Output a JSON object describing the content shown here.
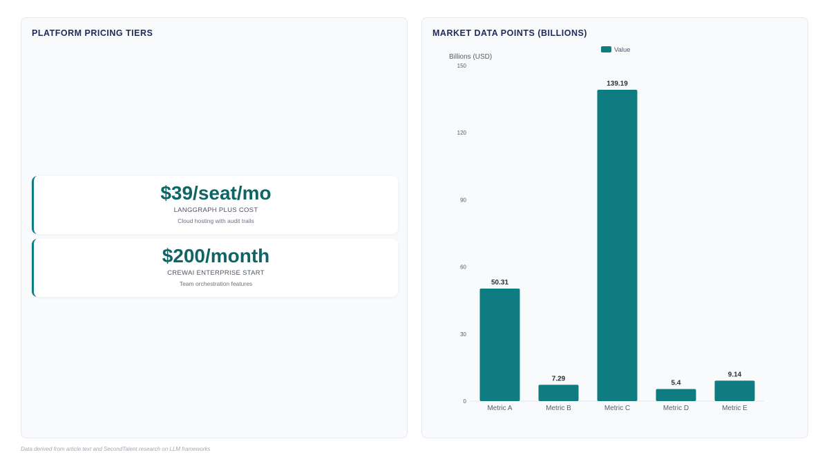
{
  "left_panel": {
    "title": "PLATFORM PRICING TIERS",
    "cards": [
      {
        "value": "$39/seat/mo",
        "label": "LANGGRAPH PLUS COST",
        "description": "Cloud hosting with audit trails"
      },
      {
        "value": "$200/month",
        "label": "CREWAI ENTERPRISE START",
        "description": "Team orchestration features"
      }
    ]
  },
  "right_panel": {
    "title": "MARKET DATA POINTS (BILLIONS)"
  },
  "chart_data": {
    "type": "bar",
    "categories": [
      "Metric A",
      "Metric B",
      "Metric C",
      "Metric D",
      "Metric E"
    ],
    "series": [
      {
        "name": "Value",
        "values": [
          50.31,
          7.29,
          139.19,
          5.4,
          9.14
        ],
        "color": "#0e7c80"
      }
    ],
    "data_labels": [
      "50.31",
      "7.29",
      "139.19",
      "5.4",
      "9.14"
    ],
    "ylabel": "Billions (USD)",
    "xlabel": "",
    "ylim": [
      0,
      150
    ],
    "yticks": [
      0,
      30,
      60,
      90,
      120,
      150
    ],
    "grid": false,
    "legend": "top"
  },
  "footnote": "Data derived from article text and SecondTalent research on LLM frameworks"
}
